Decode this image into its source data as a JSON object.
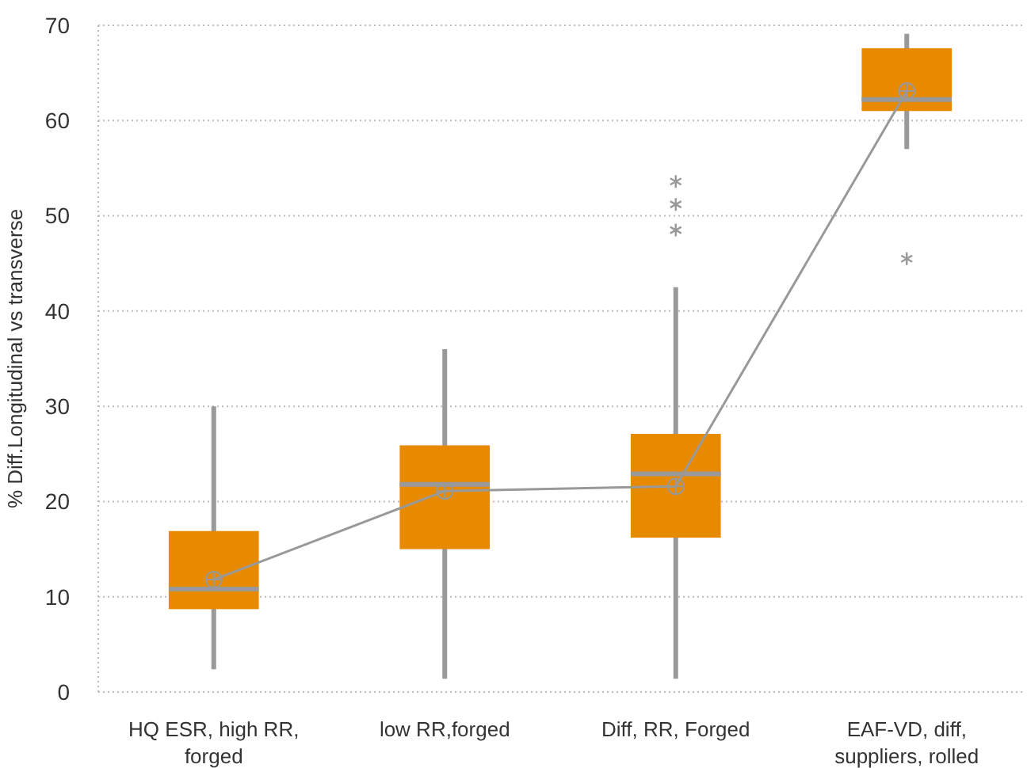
{
  "chart_data": {
    "type": "box",
    "ylabel": "% Diff.Longitudinal vs transverse",
    "categories": [
      "HQ ESR, high RR, forged",
      "low RR,forged",
      "Diff, RR, Forged",
      "EAF-VD, diff, suppliers, rolled"
    ],
    "ylim": [
      0,
      70
    ],
    "yticks": [
      0,
      10,
      20,
      30,
      40,
      50,
      60,
      70
    ],
    "grid": "y",
    "series": [
      {
        "color": "#e88a00",
        "boxes": [
          {
            "low": 2.4,
            "q1": 8.7,
            "median": 10.8,
            "q3": 16.9,
            "high": 30
          },
          {
            "low": 1.4,
            "q1": 15,
            "median": 21.8,
            "q3": 25.9,
            "high": 36
          },
          {
            "low": 1.4,
            "q1": 16.2,
            "median": 22.9,
            "q3": 27.1,
            "high": 42.5,
            "outliers": [
              48.5,
              51.2,
              53.6
            ]
          },
          {
            "low": 57,
            "q1": 61,
            "median": 62.2,
            "q3": 67.6,
            "high": 69.1,
            "outliers": [
              45.5
            ]
          }
        ]
      },
      {
        "type": "line",
        "color": "#999999",
        "marker": "circle",
        "values": [
          11.8,
          21.1,
          21.6,
          63.1
        ]
      }
    ]
  }
}
